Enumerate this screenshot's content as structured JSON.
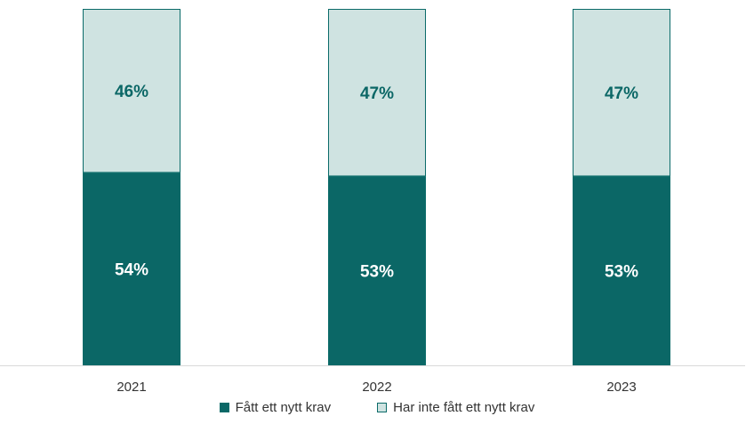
{
  "chart_data": {
    "type": "bar",
    "stacked": true,
    "categories": [
      "2021",
      "2022",
      "2023"
    ],
    "series": [
      {
        "name": "Fått ett nytt krav",
        "values": [
          54,
          53,
          53
        ],
        "labels": [
          "54%",
          "53%",
          "53%"
        ],
        "color": "#0b6766"
      },
      {
        "name": "Har inte fått ett nytt krav",
        "values": [
          46,
          47,
          47
        ],
        "labels": [
          "46%",
          "47%",
          "47%"
        ],
        "color": "#cfe3e1"
      }
    ],
    "title": "",
    "xlabel": "",
    "ylabel": "",
    "ylim": [
      0,
      100
    ],
    "grid": false,
    "legend": "bottom"
  }
}
